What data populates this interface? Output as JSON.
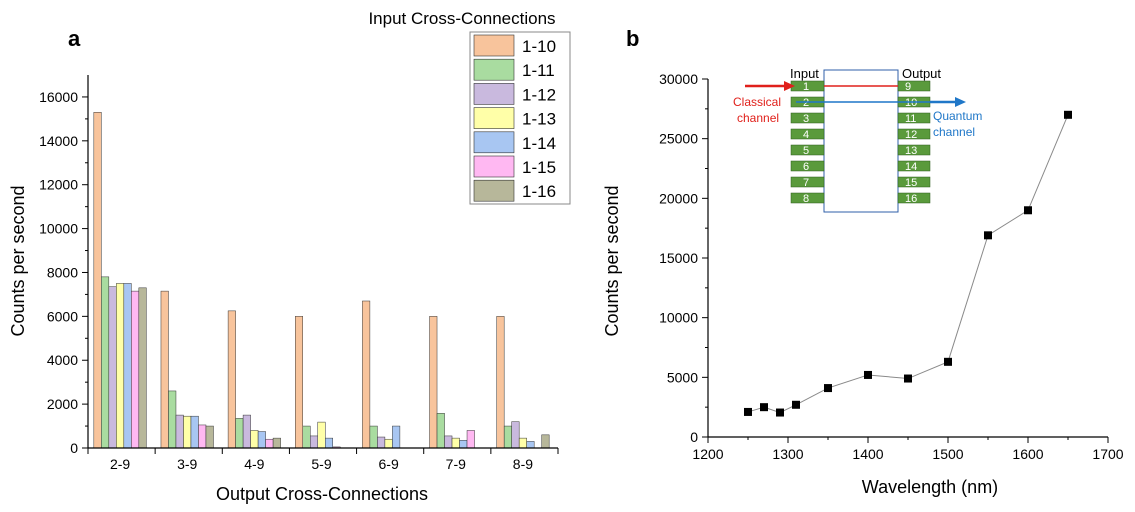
{
  "chart_data": [
    {
      "type": "bar",
      "panel_label": "a",
      "legend_title": "Input Cross-Connections",
      "xlabel": "Output Cross-Connections",
      "ylabel": "Counts per second",
      "ylim": [
        0,
        17000
      ],
      "yticks": [
        0,
        2000,
        4000,
        6000,
        8000,
        10000,
        12000,
        14000,
        16000
      ],
      "legend_position": "top-right",
      "categories": [
        "2-9",
        "3-9",
        "4-9",
        "5-9",
        "6-9",
        "7-9",
        "8-9"
      ],
      "series": [
        {
          "name": "1-10",
          "color": "#F8C49C",
          "values": [
            15300,
            7150,
            6250,
            6000,
            6700,
            6000,
            6000
          ]
        },
        {
          "name": "1-11",
          "color": "#A9DCA0",
          "values": [
            7800,
            2600,
            1350,
            1000,
            1000,
            1580,
            1000
          ]
        },
        {
          "name": "1-12",
          "color": "#C9B9DE",
          "values": [
            7350,
            1500,
            1500,
            550,
            500,
            550,
            1200
          ]
        },
        {
          "name": "1-13",
          "color": "#FFFFA8",
          "values": [
            7500,
            1450,
            800,
            1180,
            400,
            450,
            450
          ]
        },
        {
          "name": "1-14",
          "color": "#A8C6F2",
          "values": [
            7500,
            1450,
            750,
            450,
            1000,
            350,
            300
          ]
        },
        {
          "name": "1-15",
          "color": "#FFB8F2",
          "values": [
            7150,
            1050,
            400,
            50,
            0,
            800,
            0
          ]
        },
        {
          "name": "1-16",
          "color": "#B7B79A",
          "values": [
            7300,
            1000,
            450,
            0,
            0,
            0,
            600
          ]
        }
      ]
    },
    {
      "type": "scatter",
      "panel_label": "b",
      "xlabel": "Wavelength (nm)",
      "ylabel": "Counts per second",
      "xlim": [
        1200,
        1700
      ],
      "ylim": [
        0,
        30000
      ],
      "xticks": [
        1200,
        1300,
        1400,
        1500,
        1600,
        1700
      ],
      "yticks": [
        0,
        5000,
        10000,
        15000,
        20000,
        25000,
        30000
      ],
      "marker_color": "#000000",
      "x": [
        1250,
        1270,
        1290,
        1310,
        1350,
        1400,
        1450,
        1500,
        1550,
        1600,
        1650
      ],
      "y": [
        2100,
        2500,
        2050,
        2700,
        4100,
        5200,
        4900,
        6300,
        16900,
        19000,
        27000
      ]
    }
  ],
  "inset": {
    "input_label": "Input",
    "output_label": "Output",
    "classical_label": [
      "Classical",
      "channel"
    ],
    "quantum_label": [
      "Quantum",
      "channel"
    ],
    "input_pins": [
      "1",
      "2",
      "3",
      "4",
      "5",
      "6",
      "7",
      "8"
    ],
    "output_pins": [
      "9",
      "10",
      "11",
      "12",
      "13",
      "14",
      "15",
      "16"
    ],
    "classical_color": "#E0201B",
    "quantum_color": "#1F77C8",
    "pin_color": "#5A9A3C"
  }
}
